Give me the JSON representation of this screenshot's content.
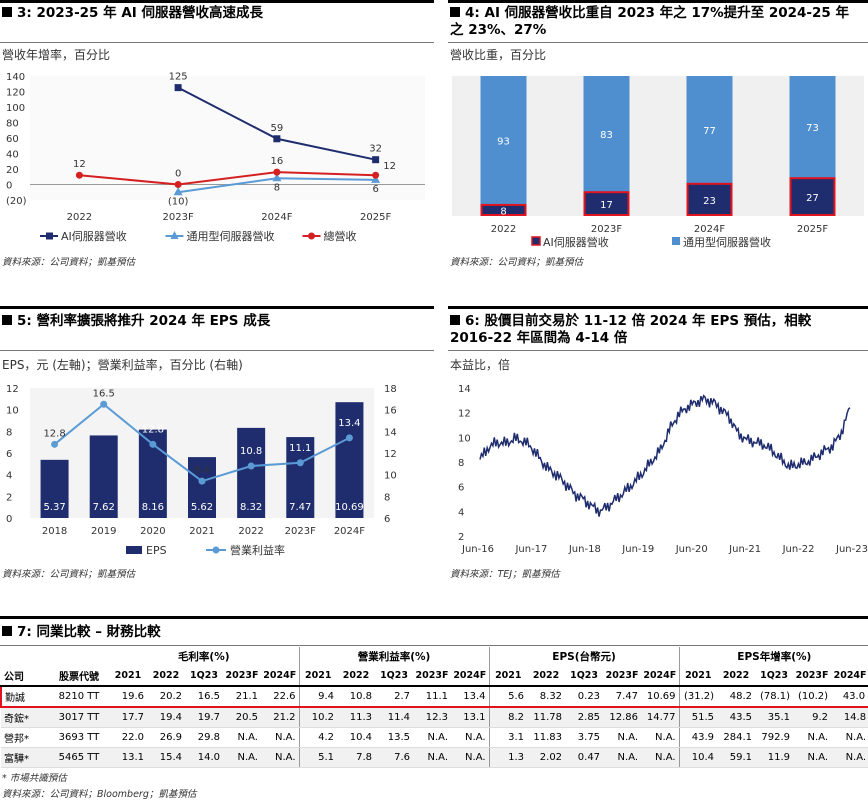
{
  "fig3": {
    "title": "3: 2023-25 年 AI 伺服器營收高速成長",
    "subtitle": "營收年增率，百分比",
    "source": "資料來源：公司資料；凱基預估",
    "chart_data": {
      "type": "line",
      "categories": [
        "2022",
        "2023F",
        "2024F",
        "2025F"
      ],
      "yticks": [
        "140",
        "120",
        "100",
        "80",
        "60",
        "40",
        "20",
        "0",
        "(20)"
      ],
      "ylim": [
        -20,
        140
      ],
      "series": [
        {
          "name": "AI伺服器營收",
          "color": "#1f2d6e",
          "values": [
            null,
            125,
            59,
            32
          ],
          "labels": [
            "",
            "125",
            "59",
            "32"
          ]
        },
        {
          "name": "通用型伺服器營收",
          "color": "#5b9bd5",
          "values": [
            null,
            -10,
            8,
            6
          ],
          "labels": [
            "",
            "(10)",
            "8",
            "6"
          ]
        },
        {
          "name": "總營收",
          "color": "#d42020",
          "values": [
            12,
            0,
            16,
            12
          ],
          "labels": [
            "12",
            "0",
            "16",
            "12"
          ]
        }
      ]
    }
  },
  "fig4": {
    "title": "4: AI 伺服器營收比重自 2023 年之 17%提升至 2024-25 年之 23%、27%",
    "title_line1": "4: AI 伺服器營收比重自 2023 年之 17%提升至 2024-25 年",
    "title_line2": "之 23%、27%",
    "subtitle": "營收比重，百分比",
    "source": "資料來源：公司資料；凱基預估",
    "chart_data": {
      "type": "bar",
      "stacked": true,
      "categories": [
        "2022",
        "2023F",
        "2024F",
        "2025F"
      ],
      "series": [
        {
          "name": "AI伺服器營收",
          "color": "#1f2d6e",
          "values": [
            8,
            17,
            23,
            27
          ],
          "labels": [
            "8",
            "17",
            "23",
            "27"
          ]
        },
        {
          "name": "通用型伺服器營收",
          "color": "#4f8fd0",
          "values": [
            93,
            83,
            77,
            73
          ],
          "labels": [
            "93",
            "83",
            "77",
            "73"
          ]
        }
      ]
    }
  },
  "fig5": {
    "title": "5: 營利率擴張將推升 2024 年 EPS 成長",
    "subtitle": "EPS，元 (左軸)；營業利益率，百分比 (右軸)",
    "source": "資料來源：公司資料；凱基預估",
    "chart_data": {
      "type": "bar",
      "categories": [
        "2018",
        "2019",
        "2020",
        "2021",
        "2022",
        "2023F",
        "2024F"
      ],
      "y_left_ticks": [
        "12",
        "10",
        "8",
        "6",
        "4",
        "2",
        "0"
      ],
      "y_right_ticks": [
        "18",
        "16",
        "14",
        "12",
        "10",
        "8",
        "6"
      ],
      "ylim_left": [
        0,
        12
      ],
      "ylim_right": [
        6,
        18
      ],
      "series": [
        {
          "name": "EPS",
          "axis": "left",
          "color": "#1f2d6e",
          "values": [
            5.37,
            7.62,
            8.16,
            5.62,
            8.32,
            7.47,
            10.69
          ],
          "labels": [
            "5.37",
            "7.62",
            "8.16",
            "5.62",
            "8.32",
            "7.47",
            "10.69"
          ]
        },
        {
          "name": "營業利益率",
          "axis": "right",
          "color": "#5b9bd5",
          "values": [
            12.8,
            16.5,
            12.8,
            9.4,
            10.8,
            11.1,
            13.4
          ],
          "labels": [
            "12.8",
            "16.5",
            "12.8",
            "9.4",
            "10.8",
            "11.1",
            "13.4"
          ]
        }
      ]
    }
  },
  "fig6": {
    "title_line1": "6: 股價目前交易於 11-12 倍 2024 年 EPS 預估，相較",
    "title_line2": "2016-22 年區間為 4-14 倍",
    "subtitle": "本益比，倍",
    "source": "資料來源：TEJ；凱基預估",
    "chart_data": {
      "type": "line",
      "x_ticks": [
        "Jun-16",
        "Jun-17",
        "Jun-18",
        "Jun-19",
        "Jun-20",
        "Jun-21",
        "Jun-22",
        "Jun-23"
      ],
      "yticks": [
        "14",
        "12",
        "10",
        "8",
        "6",
        "4",
        "2"
      ],
      "ylim": [
        2,
        14
      ],
      "color": "#1f2d6e",
      "series": [
        {
          "values": [
            8.2,
            9.2,
            9.6,
            9.5,
            9.9,
            9.7,
            9.2,
            8.2,
            7.4,
            6.9,
            6.2,
            5.4,
            5.0,
            4.4,
            4.0,
            4.5,
            5.1,
            5.7,
            6.4,
            7.2,
            8.1,
            9.0,
            10.6,
            11.8,
            12.4,
            12.8,
            13.1,
            12.9,
            12.3,
            11.6,
            10.3,
            9.8,
            9.6,
            9.4,
            8.9,
            8.2,
            7.6,
            7.8,
            8.0,
            8.4,
            8.9,
            9.3,
            10.4,
            12.4
          ]
        }
      ]
    }
  },
  "fig7": {
    "title": "7: 同業比較 – 財務比較",
    "group_headers": [
      "毛利率(%)",
      "營業利益率(%)",
      "EPS(台幣元)",
      "EPS年增率(%)"
    ],
    "col_company": "公司",
    "col_ticker": "股票代號",
    "periods": [
      "2021",
      "2022",
      "1Q23",
      "2023F",
      "2024F"
    ],
    "rows": [
      {
        "company": "勤誠",
        "ticker": "8210 TT",
        "values": [
          "19.6",
          "20.2",
          "16.5",
          "21.1",
          "22.6",
          "9.4",
          "10.8",
          "2.7",
          "11.1",
          "13.4",
          "5.6",
          "8.32",
          "0.23",
          "7.47",
          "10.69",
          "(31.2)",
          "48.2",
          "(78.1)",
          "(10.2)",
          "43.0"
        ]
      },
      {
        "company": "奇鋐*",
        "ticker": "3017 TT",
        "values": [
          "17.7",
          "19.4",
          "19.7",
          "20.5",
          "21.2",
          "10.2",
          "11.3",
          "11.4",
          "12.3",
          "13.1",
          "8.2",
          "11.78",
          "2.85",
          "12.86",
          "14.77",
          "51.5",
          "43.5",
          "35.1",
          "9.2",
          "14.8"
        ]
      },
      {
        "company": "營邦*",
        "ticker": "3693 TT",
        "values": [
          "22.0",
          "26.9",
          "29.8",
          "N.A.",
          "N.A.",
          "4.2",
          "10.4",
          "13.5",
          "N.A.",
          "N.A.",
          "3.1",
          "11.83",
          "3.75",
          "N.A.",
          "N.A.",
          "43.9",
          "284.1",
          "792.9",
          "N.A.",
          "N.A."
        ]
      },
      {
        "company": "富驊*",
        "ticker": "5465 TT",
        "values": [
          "13.1",
          "15.4",
          "14.0",
          "N.A.",
          "N.A.",
          "5.1",
          "7.8",
          "7.6",
          "N.A.",
          "N.A.",
          "1.3",
          "2.02",
          "0.47",
          "N.A.",
          "N.A.",
          "10.4",
          "59.1",
          "11.9",
          "N.A.",
          "N.A."
        ]
      }
    ],
    "footnote": "* 市場共識預估",
    "source": "資料來源：公司資料；Bloomberg；凱基預估"
  }
}
